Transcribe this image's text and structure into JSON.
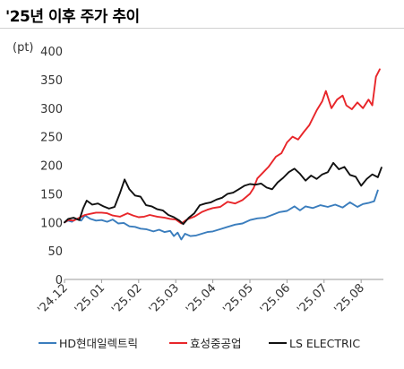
{
  "title": "'25년 이후 주가 추이",
  "chart_data": {
    "type": "line",
    "unit": "(pt)",
    "ylim": [
      0,
      400
    ],
    "yticks": [
      0,
      50,
      100,
      150,
      200,
      250,
      300,
      350,
      400
    ],
    "yticklabels": [
      "0",
      "50",
      "100",
      "150",
      "200",
      "250",
      "300",
      "350",
      "400"
    ],
    "xlim": [
      0,
      8.6
    ],
    "xticks": [
      0,
      1,
      2,
      3,
      4,
      5,
      6,
      7,
      8
    ],
    "xticklabels": [
      "'24.12",
      "'25.01",
      "'25.02",
      "'25.03",
      "'25.04",
      "'25.05",
      "'25.06",
      "'25.07",
      "'25.08"
    ],
    "grid": false,
    "legend_position": "bottom",
    "series": [
      {
        "name": "HD현대일렉트릭",
        "color": "#3a7dbd",
        "x": [
          0,
          0.1,
          0.2,
          0.3,
          0.45,
          0.55,
          0.7,
          0.85,
          1.0,
          1.15,
          1.3,
          1.45,
          1.6,
          1.75,
          1.9,
          2.05,
          2.2,
          2.4,
          2.55,
          2.7,
          2.85,
          2.95,
          3.05,
          3.15,
          3.25,
          3.4,
          3.55,
          3.7,
          3.85,
          4.0,
          4.2,
          4.4,
          4.6,
          4.8,
          5.0,
          5.2,
          5.4,
          5.6,
          5.8,
          6.0,
          6.2,
          6.35,
          6.5,
          6.7,
          6.9,
          7.1,
          7.3,
          7.5,
          7.7,
          7.9,
          8.05,
          8.2,
          8.35,
          8.45
        ],
        "values": [
          100,
          103,
          101,
          106,
          103,
          112,
          106,
          103,
          104,
          101,
          105,
          98,
          99,
          93,
          92,
          89,
          88,
          84,
          87,
          83,
          85,
          76,
          82,
          70,
          80,
          76,
          77,
          80,
          83,
          84,
          88,
          92,
          96,
          98,
          104,
          107,
          108,
          113,
          118,
          120,
          128,
          121,
          128,
          125,
          130,
          127,
          131,
          126,
          135,
          127,
          132,
          134,
          137,
          156
        ]
      },
      {
        "name": "효성중공업",
        "color": "#e8262a",
        "x": [
          0,
          0.1,
          0.25,
          0.4,
          0.55,
          0.7,
          0.85,
          1.0,
          1.15,
          1.3,
          1.5,
          1.7,
          1.85,
          2.0,
          2.15,
          2.3,
          2.5,
          2.7,
          2.85,
          3.0,
          3.15,
          3.3,
          3.5,
          3.7,
          3.85,
          4.0,
          4.2,
          4.4,
          4.6,
          4.8,
          5.0,
          5.1,
          5.2,
          5.35,
          5.5,
          5.7,
          5.85,
          6.0,
          6.15,
          6.3,
          6.45,
          6.6,
          6.8,
          6.95,
          7.05,
          7.2,
          7.35,
          7.5,
          7.6,
          7.75,
          7.9,
          8.05,
          8.2,
          8.3,
          8.4,
          8.5
        ],
        "values": [
          100,
          104,
          103,
          108,
          113,
          115,
          117,
          117,
          116,
          112,
          110,
          116,
          112,
          109,
          110,
          113,
          110,
          108,
          106,
          105,
          98,
          105,
          110,
          118,
          122,
          125,
          127,
          136,
          133,
          139,
          150,
          160,
          177,
          187,
          197,
          215,
          221,
          240,
          250,
          245,
          258,
          270,
          296,
          312,
          330,
          300,
          315,
          322,
          305,
          298,
          310,
          300,
          315,
          305,
          355,
          368
        ]
      },
      {
        "name": "LS ELECTRIC",
        "color": "#111111",
        "x": [
          0,
          0.1,
          0.25,
          0.4,
          0.5,
          0.6,
          0.75,
          0.9,
          1.05,
          1.2,
          1.35,
          1.5,
          1.62,
          1.75,
          1.9,
          2.05,
          2.2,
          2.35,
          2.5,
          2.65,
          2.8,
          2.95,
          3.1,
          3.2,
          3.35,
          3.5,
          3.65,
          3.8,
          3.95,
          4.1,
          4.25,
          4.4,
          4.55,
          4.7,
          4.85,
          5.0,
          5.15,
          5.3,
          5.45,
          5.6,
          5.75,
          5.9,
          6.05,
          6.2,
          6.35,
          6.5,
          6.65,
          6.8,
          6.95,
          7.1,
          7.25,
          7.4,
          7.55,
          7.7,
          7.85,
          8.0,
          8.15,
          8.3,
          8.45,
          8.55
        ],
        "values": [
          100,
          106,
          108,
          104,
          124,
          138,
          131,
          133,
          128,
          124,
          127,
          152,
          175,
          158,
          147,
          145,
          130,
          128,
          123,
          121,
          113,
          109,
          103,
          97,
          108,
          116,
          130,
          133,
          135,
          140,
          143,
          150,
          152,
          158,
          164,
          167,
          166,
          168,
          161,
          158,
          170,
          178,
          188,
          194,
          185,
          173,
          182,
          176,
          184,
          188,
          204,
          193,
          197,
          183,
          180,
          164,
          176,
          184,
          179,
          196
        ]
      }
    ]
  }
}
